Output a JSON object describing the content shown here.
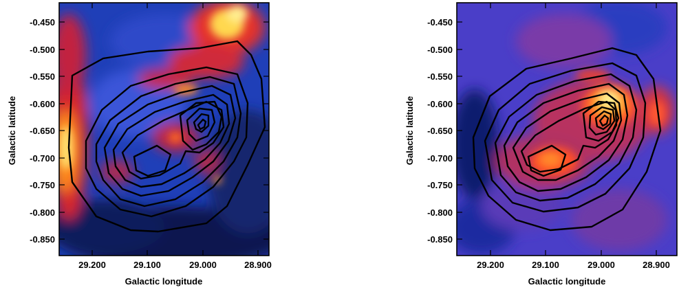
{
  "panels": [
    {
      "id": "left",
      "image_colormap": "blue-red-yellow",
      "xlabel": "Galactic longitude",
      "ylabel": "Galactic latitude",
      "x_ticks": [
        "29.200",
        "29.100",
        "29.000",
        "28.900"
      ],
      "y_ticks": [
        "-0.450",
        "-0.500",
        "-0.550",
        "-0.600",
        "-0.650",
        "-0.700",
        "-0.750",
        "-0.800",
        "-0.850"
      ]
    },
    {
      "id": "right",
      "image_colormap": "blue-red-yellow",
      "xlabel": "Galactic longitude",
      "ylabel": "Galactic latitude",
      "x_ticks": [
        "29.200",
        "29.100",
        "29.000",
        "28.900"
      ],
      "y_ticks": [
        "-0.450",
        "-0.500",
        "-0.550",
        "-0.600",
        "-0.650",
        "-0.700",
        "-0.750",
        "-0.800",
        "-0.850"
      ]
    }
  ],
  "contour_color": "#000000"
}
